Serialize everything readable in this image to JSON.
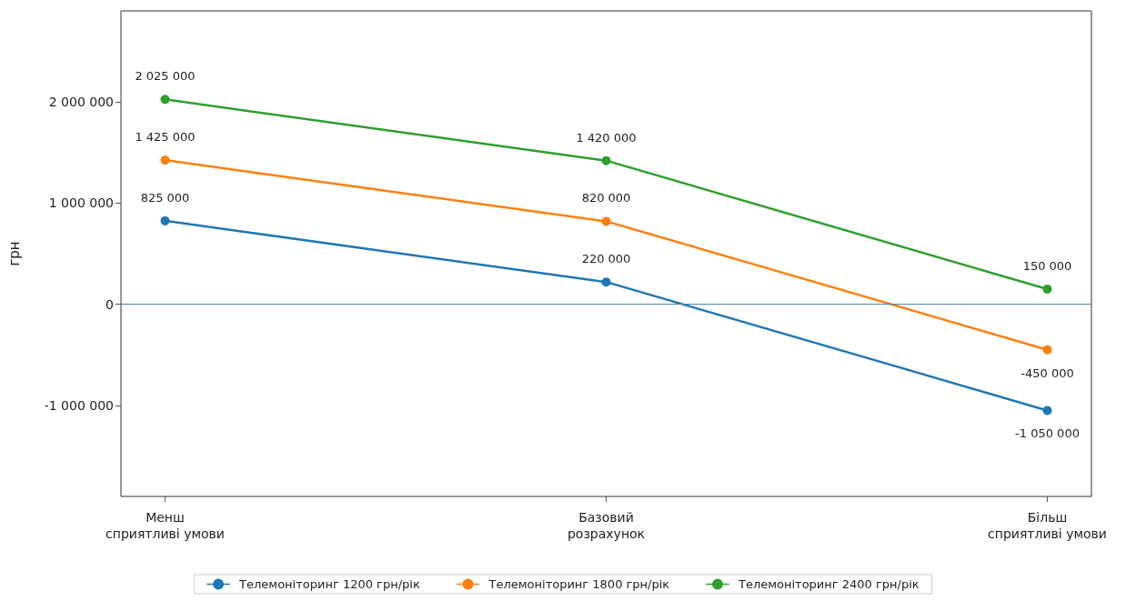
{
  "chart_data": {
    "type": "line",
    "ylabel": "грн",
    "categories": [
      "Менш сприятливі умови",
      "Базовий розрахунок",
      "Більш сприятливі умови"
    ],
    "series": [
      {
        "name": "Телемоніторинг 1200 грн/рік",
        "color": "#1f77b4",
        "values": [
          825000,
          220000,
          -1050000
        ],
        "value_labels": [
          "825 000",
          "220 000",
          "-1 050 000"
        ]
      },
      {
        "name": "Телемоніторинг 1800 грн/рік",
        "color": "#ff7f0e",
        "values": [
          1425000,
          820000,
          -450000
        ],
        "value_labels": [
          "1 425 000",
          "820 000",
          "-450 000"
        ]
      },
      {
        "name": "Телемоніторинг 2400 грн/рік",
        "color": "#2ca02c",
        "values": [
          2025000,
          1420000,
          150000
        ],
        "value_labels": [
          "2 025 000",
          "1 420 000",
          "150 000"
        ]
      }
    ],
    "ylim": [
      -1900000,
      2900000
    ],
    "yticks": [
      {
        "value": -1000000,
        "label": "-1 000 000"
      },
      {
        "value": 0,
        "label": "0"
      },
      {
        "value": 1000000,
        "label": "1 000 000"
      },
      {
        "value": 2000000,
        "label": "2 000 000"
      }
    ],
    "ref_lines": [
      {
        "axis": "y",
        "value": 0,
        "color": "#4a86b8"
      }
    ],
    "grid": false,
    "legend": "bottom",
    "marker": "circle",
    "line_style": "solid"
  }
}
